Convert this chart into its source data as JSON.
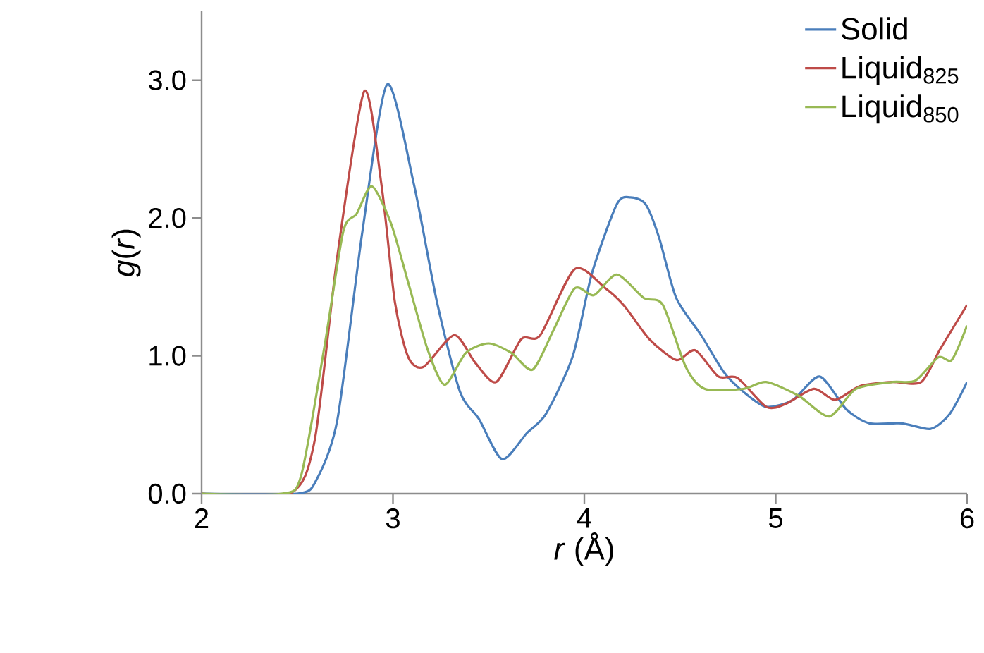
{
  "chart_data": {
    "type": "line",
    "xlabel": "*r* (Å)",
    "ylabel": "*g*(*r*)",
    "xlim": [
      2,
      6
    ],
    "xticks": [
      2,
      3,
      4,
      5,
      6
    ],
    "ylim": [
      0,
      3.5
    ],
    "yticks": [
      {
        "value": 0,
        "label": "0.0"
      },
      {
        "value": 1,
        "label": "1.0"
      },
      {
        "value": 2,
        "label": "2.0"
      },
      {
        "value": 3,
        "label": "3.0"
      }
    ],
    "grid": false,
    "legend": "top right",
    "marker": "none",
    "line_style": "solid",
    "series": [
      {
        "name": "Solid",
        "color": "#4a7ebb",
        "x": [
          2.0,
          2.5,
          2.6,
          2.71,
          2.84,
          2.97,
          3.11,
          3.23,
          3.35,
          3.45,
          3.57,
          3.7,
          3.8,
          3.94,
          4.04,
          4.17,
          4.24,
          4.32,
          4.39,
          4.48,
          4.61,
          4.73,
          4.83,
          4.95,
          5.09,
          5.23,
          5.37,
          5.49,
          5.66,
          5.81,
          5.91,
          6.0
        ],
        "values": [
          0,
          0,
          0.1,
          0.54,
          1.9,
          2.97,
          2.24,
          1.39,
          0.74,
          0.54,
          0.25,
          0.44,
          0.58,
          1.0,
          1.6,
          2.1,
          2.15,
          2.1,
          1.86,
          1.42,
          1.15,
          0.88,
          0.74,
          0.63,
          0.68,
          0.85,
          0.61,
          0.51,
          0.51,
          0.47,
          0.58,
          0.81
        ]
      },
      {
        "name": "Liquid$_{825}$",
        "color": "#be4b48",
        "x": [
          2.0,
          2.46,
          2.59,
          2.71,
          2.85,
          2.94,
          3.01,
          3.08,
          3.16,
          3.32,
          3.43,
          3.54,
          3.67,
          3.77,
          3.95,
          4.11,
          4.21,
          4.34,
          4.48,
          4.58,
          4.7,
          4.8,
          4.95,
          5.05,
          5.2,
          5.31,
          5.44,
          5.61,
          5.76,
          5.86,
          6.0
        ],
        "values": [
          0,
          0,
          0.38,
          1.73,
          2.92,
          2.24,
          1.39,
          0.99,
          0.92,
          1.15,
          0.95,
          0.81,
          1.12,
          1.15,
          1.63,
          1.49,
          1.36,
          1.12,
          0.97,
          1.04,
          0.85,
          0.84,
          0.63,
          0.65,
          0.76,
          0.68,
          0.78,
          0.81,
          0.81,
          1.05,
          1.37
        ]
      },
      {
        "name": "Liquid$_{850}$",
        "color": "#98b954",
        "x": [
          2.0,
          2.42,
          2.52,
          2.64,
          2.74,
          2.81,
          2.89,
          2.99,
          3.08,
          3.18,
          3.27,
          3.38,
          3.5,
          3.62,
          3.73,
          3.84,
          3.95,
          4.05,
          4.17,
          4.31,
          4.41,
          4.53,
          4.63,
          4.83,
          4.95,
          5.12,
          5.28,
          5.42,
          5.61,
          5.73,
          5.85,
          5.92,
          6.0
        ],
        "values": [
          0,
          0,
          0.13,
          1.05,
          1.9,
          2.03,
          2.23,
          1.96,
          1.53,
          1.05,
          0.79,
          1.02,
          1.09,
          1.02,
          0.9,
          1.19,
          1.49,
          1.44,
          1.59,
          1.42,
          1.37,
          0.92,
          0.76,
          0.76,
          0.81,
          0.71,
          0.56,
          0.76,
          0.81,
          0.82,
          0.99,
          0.97,
          1.22
        ]
      }
    ]
  }
}
